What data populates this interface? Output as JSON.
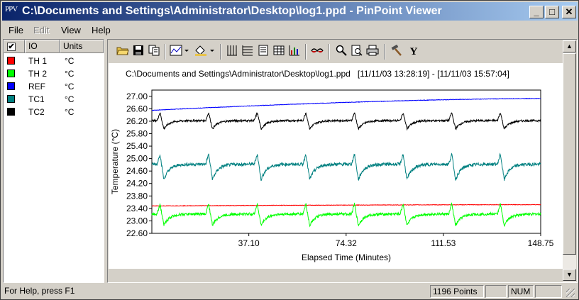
{
  "window": {
    "title": "C:\\Documents and Settings\\Administrator\\Desktop\\log1.ppd - PinPoint Viewer",
    "app_icon": "PPV",
    "minimize_glyph": "_",
    "maximize_glyph": "□",
    "close_glyph": "✕"
  },
  "menu": [
    {
      "label": "File",
      "enabled": true
    },
    {
      "label": "Edit",
      "enabled": false
    },
    {
      "label": "View",
      "enabled": true
    },
    {
      "label": "Help",
      "enabled": true
    }
  ],
  "io_list": {
    "header": {
      "check": "✔",
      "io": "IO",
      "units": "Units"
    },
    "rows": [
      {
        "name": "TH 1",
        "unit": "°C",
        "color": "#ff0000"
      },
      {
        "name": "TH 2",
        "unit": "°C",
        "color": "#00ff00"
      },
      {
        "name": "REF",
        "unit": "°C",
        "color": "#0000ff"
      },
      {
        "name": "TC1",
        "unit": "°C",
        "color": "#008080"
      },
      {
        "name": "TC2",
        "unit": "°C",
        "color": "#000000"
      }
    ]
  },
  "toolbar": {
    "icons": [
      "open-folder-icon",
      "save-icon",
      "copy-icon",
      "chart-type-icon",
      "fill-color-icon",
      "vertical-grid-icon",
      "horizontal-grid-icon",
      "data-list-icon",
      "table-icon",
      "chart-zoom-icon",
      "glasses-icon",
      "zoom-icon",
      "zoom-page-icon",
      "print-icon",
      "hammer-icon",
      "y-axis-icon"
    ],
    "y_axis_glyph": "Y"
  },
  "chart_data": {
    "type": "line",
    "title": "C:\\Documents and Settings\\Administrator\\Desktop\\log1.ppd   [11/11/03 13:28:19] - [11/11/03 15:57:04]",
    "xlabel": "Elapsed Time (Minutes)",
    "ylabel": "Temperature (°C)",
    "xlim": [
      0,
      148.75
    ],
    "ylim": [
      22.6,
      27.2
    ],
    "x_ticks": [
      37.1,
      74.32,
      111.53,
      148.75
    ],
    "x_tick_labels": [
      "37.10",
      "74.32",
      "111.53",
      "148.75"
    ],
    "y_ticks": [
      22.6,
      23.0,
      23.4,
      23.8,
      24.2,
      24.6,
      25.0,
      25.4,
      25.8,
      26.2,
      26.6,
      27.0
    ],
    "y_tick_labels": [
      "22.60",
      "23.00",
      "23.40",
      "23.80",
      "24.20",
      "24.60",
      "25.00",
      "25.40",
      "25.80",
      "26.20",
      "26.60",
      "27.00"
    ],
    "grid": false,
    "cycle_minutes": 18.6,
    "series": [
      {
        "name": "REF",
        "color": "#0000ff",
        "kind": "drift",
        "start": 26.55,
        "end": 26.93
      },
      {
        "name": "TC2",
        "color": "#000000",
        "kind": "cycle",
        "base": 26.22,
        "peak": 26.48,
        "dip": 25.95
      },
      {
        "name": "TC1",
        "color": "#008080",
        "kind": "cycle",
        "base": 24.82,
        "peak": 25.15,
        "dip": 24.32
      },
      {
        "name": "TH 1",
        "color": "#ff0000",
        "kind": "drift",
        "start": 23.48,
        "end": 23.52
      },
      {
        "name": "TH 2",
        "color": "#00ff00",
        "kind": "cycle",
        "base": 23.22,
        "peak": 23.55,
        "dip": 22.85
      }
    ]
  },
  "status": {
    "help": "For Help, press F1",
    "points": "1196 Points",
    "blank1": "",
    "num": "NUM",
    "blank2": ""
  }
}
